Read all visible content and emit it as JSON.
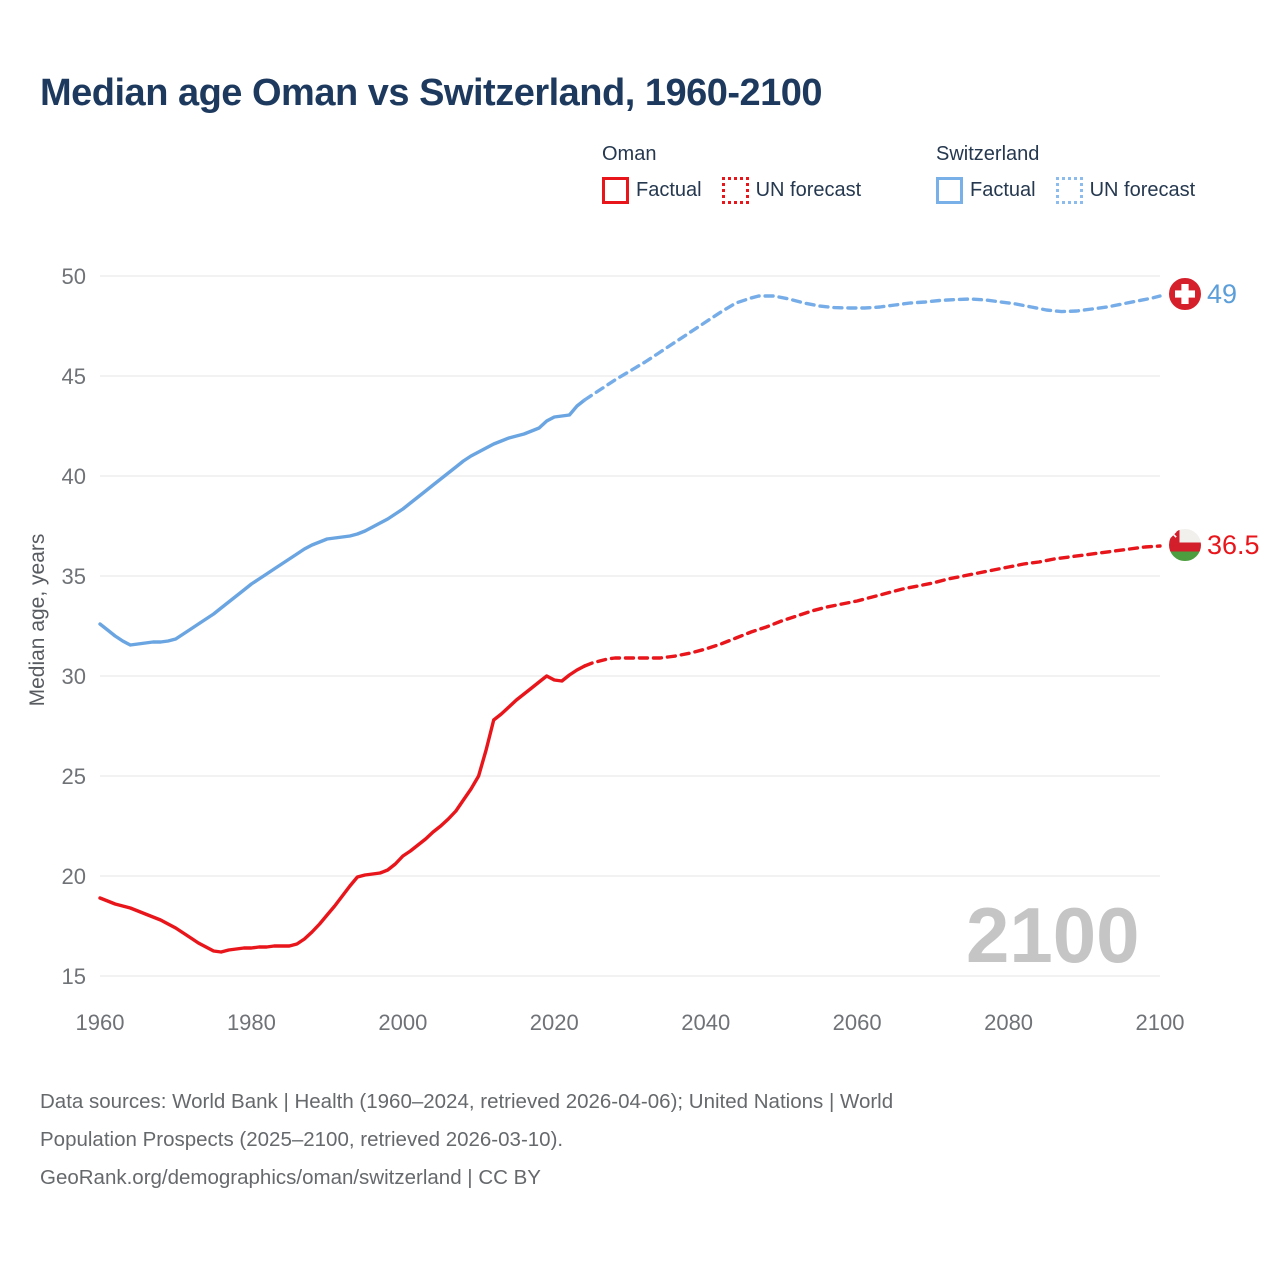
{
  "title": "Median age Oman vs Switzerland, 1960-2100",
  "watermark": "2100",
  "legend": {
    "groups": [
      {
        "label": "Oman",
        "items": [
          {
            "label": "Factual",
            "style": "solid",
            "color": "#e8151b"
          },
          {
            "label": "UN forecast",
            "style": "dotted",
            "color": "#e8151b"
          }
        ]
      },
      {
        "label": "Switzerland",
        "items": [
          {
            "label": "Factual",
            "style": "solid",
            "color": "#79b0e8"
          },
          {
            "label": "UN forecast",
            "style": "dotted",
            "color": "#8cbbee"
          }
        ]
      }
    ]
  },
  "end_labels": {
    "switzerland": {
      "value": "49",
      "color": "#5b9ed9"
    },
    "oman": {
      "value": "36.5",
      "color": "#e8151b"
    }
  },
  "footer": {
    "line1": "Data sources: World Bank | Health (1960–2024, retrieved 2026-04-06); United Nations | World",
    "line2": "Population Prospects (2025–2100, retrieved 2026-03-10).",
    "line3": "GeoRank.org/demographics/oman/switzerland | CC BY"
  },
  "chart_data": {
    "type": "line",
    "title": "Median age Oman vs Switzerland, 1960-2100",
    "xlabel": "",
    "ylabel": "Median age, years",
    "xlim": [
      1960,
      2100
    ],
    "ylim": [
      15,
      50
    ],
    "x_ticks": [
      1960,
      1980,
      2000,
      2020,
      2040,
      2060,
      2080,
      2100
    ],
    "y_ticks": [
      15,
      20,
      25,
      30,
      35,
      40,
      45,
      50
    ],
    "grid_on": true,
    "grid_color": "#ededee",
    "tick_color": "#6f7276",
    "axis_title_color": "#585c61",
    "legend_position": "top-right",
    "series": [
      {
        "id": "switzerland-factual",
        "name": "Switzerland Factual",
        "color": "#6aa5e2",
        "dashed": false,
        "points": [
          [
            1960,
            32.6
          ],
          [
            1961,
            32.3
          ],
          [
            1962,
            32.0
          ],
          [
            1963,
            31.75
          ],
          [
            1964,
            31.55
          ],
          [
            1965,
            31.6
          ],
          [
            1966,
            31.65
          ],
          [
            1967,
            31.7
          ],
          [
            1968,
            31.7
          ],
          [
            1969,
            31.75
          ],
          [
            1970,
            31.85
          ],
          [
            1971,
            32.1
          ],
          [
            1972,
            32.35
          ],
          [
            1973,
            32.6
          ],
          [
            1974,
            32.85
          ],
          [
            1975,
            33.1
          ],
          [
            1976,
            33.4
          ],
          [
            1977,
            33.7
          ],
          [
            1978,
            34.0
          ],
          [
            1979,
            34.3
          ],
          [
            1980,
            34.6
          ],
          [
            1981,
            34.85
          ],
          [
            1982,
            35.1
          ],
          [
            1983,
            35.35
          ],
          [
            1984,
            35.6
          ],
          [
            1985,
            35.85
          ],
          [
            1986,
            36.1
          ],
          [
            1987,
            36.35
          ],
          [
            1988,
            36.55
          ],
          [
            1989,
            36.7
          ],
          [
            1990,
            36.85
          ],
          [
            1991,
            36.9
          ],
          [
            1992,
            36.95
          ],
          [
            1993,
            37.0
          ],
          [
            1994,
            37.1
          ],
          [
            1995,
            37.25
          ],
          [
            1996,
            37.45
          ],
          [
            1997,
            37.65
          ],
          [
            1998,
            37.85
          ],
          [
            1999,
            38.1
          ],
          [
            2000,
            38.35
          ],
          [
            2001,
            38.65
          ],
          [
            2002,
            38.95
          ],
          [
            2003,
            39.25
          ],
          [
            2004,
            39.55
          ],
          [
            2005,
            39.85
          ],
          [
            2006,
            40.15
          ],
          [
            2007,
            40.45
          ],
          [
            2008,
            40.75
          ],
          [
            2009,
            41.0
          ],
          [
            2010,
            41.2
          ],
          [
            2011,
            41.4
          ],
          [
            2012,
            41.6
          ],
          [
            2013,
            41.75
          ],
          [
            2014,
            41.9
          ],
          [
            2015,
            42.0
          ],
          [
            2016,
            42.1
          ],
          [
            2017,
            42.25
          ],
          [
            2018,
            42.4
          ],
          [
            2019,
            42.75
          ],
          [
            2020,
            42.95
          ],
          [
            2021,
            43.0
          ],
          [
            2022,
            43.05
          ],
          [
            2023,
            43.5
          ],
          [
            2024,
            43.8
          ]
        ]
      },
      {
        "id": "switzerland-forecast",
        "name": "Switzerland UN forecast",
        "color": "#76ade8",
        "dashed": true,
        "points": [
          [
            2024,
            43.8
          ],
          [
            2025,
            44.05
          ],
          [
            2026,
            44.3
          ],
          [
            2028,
            44.8
          ],
          [
            2030,
            45.25
          ],
          [
            2032,
            45.7
          ],
          [
            2034,
            46.2
          ],
          [
            2036,
            46.7
          ],
          [
            2038,
            47.2
          ],
          [
            2040,
            47.7
          ],
          [
            2042,
            48.2
          ],
          [
            2044,
            48.65
          ],
          [
            2046,
            48.9
          ],
          [
            2047,
            49.0
          ],
          [
            2049,
            49.0
          ],
          [
            2051,
            48.85
          ],
          [
            2053,
            48.65
          ],
          [
            2055,
            48.5
          ],
          [
            2057,
            48.42
          ],
          [
            2059,
            48.4
          ],
          [
            2061,
            48.4
          ],
          [
            2063,
            48.45
          ],
          [
            2065,
            48.55
          ],
          [
            2067,
            48.65
          ],
          [
            2069,
            48.7
          ],
          [
            2071,
            48.78
          ],
          [
            2073,
            48.82
          ],
          [
            2075,
            48.85
          ],
          [
            2077,
            48.8
          ],
          [
            2079,
            48.7
          ],
          [
            2081,
            48.6
          ],
          [
            2083,
            48.45
          ],
          [
            2085,
            48.3
          ],
          [
            2087,
            48.22
          ],
          [
            2089,
            48.25
          ],
          [
            2091,
            48.35
          ],
          [
            2093,
            48.45
          ],
          [
            2095,
            48.6
          ],
          [
            2097,
            48.75
          ],
          [
            2099,
            48.9
          ],
          [
            2100,
            49.0
          ]
        ]
      },
      {
        "id": "oman-factual",
        "name": "Oman Factual",
        "color": "#e8151b",
        "dashed": false,
        "points": [
          [
            1960,
            18.9
          ],
          [
            1961,
            18.75
          ],
          [
            1962,
            18.6
          ],
          [
            1963,
            18.5
          ],
          [
            1964,
            18.4
          ],
          [
            1965,
            18.25
          ],
          [
            1966,
            18.1
          ],
          [
            1967,
            17.95
          ],
          [
            1968,
            17.8
          ],
          [
            1969,
            17.6
          ],
          [
            1970,
            17.4
          ],
          [
            1971,
            17.15
          ],
          [
            1972,
            16.9
          ],
          [
            1973,
            16.65
          ],
          [
            1974,
            16.45
          ],
          [
            1975,
            16.25
          ],
          [
            1976,
            16.2
          ],
          [
            1977,
            16.3
          ],
          [
            1978,
            16.35
          ],
          [
            1979,
            16.4
          ],
          [
            1980,
            16.4
          ],
          [
            1981,
            16.45
          ],
          [
            1982,
            16.45
          ],
          [
            1983,
            16.5
          ],
          [
            1984,
            16.5
          ],
          [
            1985,
            16.5
          ],
          [
            1986,
            16.6
          ],
          [
            1987,
            16.85
          ],
          [
            1988,
            17.2
          ],
          [
            1989,
            17.6
          ],
          [
            1990,
            18.05
          ],
          [
            1991,
            18.5
          ],
          [
            1992,
            19.0
          ],
          [
            1993,
            19.5
          ],
          [
            1994,
            19.95
          ],
          [
            1995,
            20.05
          ],
          [
            1996,
            20.1
          ],
          [
            1997,
            20.15
          ],
          [
            1998,
            20.3
          ],
          [
            1999,
            20.6
          ],
          [
            2000,
            21.0
          ],
          [
            2001,
            21.25
          ],
          [
            2002,
            21.55
          ],
          [
            2003,
            21.85
          ],
          [
            2004,
            22.2
          ],
          [
            2005,
            22.5
          ],
          [
            2006,
            22.85
          ],
          [
            2007,
            23.25
          ],
          [
            2008,
            23.8
          ],
          [
            2009,
            24.35
          ],
          [
            2010,
            25.0
          ],
          [
            2011,
            26.3
          ],
          [
            2012,
            27.8
          ],
          [
            2013,
            28.1
          ],
          [
            2014,
            28.45
          ],
          [
            2015,
            28.8
          ],
          [
            2016,
            29.1
          ],
          [
            2017,
            29.4
          ],
          [
            2018,
            29.7
          ],
          [
            2019,
            30.0
          ],
          [
            2020,
            29.8
          ],
          [
            2021,
            29.75
          ],
          [
            2022,
            30.05
          ],
          [
            2023,
            30.3
          ],
          [
            2024,
            30.5
          ]
        ]
      },
      {
        "id": "oman-forecast",
        "name": "Oman UN forecast",
        "color": "#e8151b",
        "dashed": true,
        "points": [
          [
            2024,
            30.5
          ],
          [
            2025,
            30.65
          ],
          [
            2026,
            30.75
          ],
          [
            2027,
            30.85
          ],
          [
            2028,
            30.9
          ],
          [
            2030,
            30.9
          ],
          [
            2032,
            30.9
          ],
          [
            2034,
            30.9
          ],
          [
            2035,
            30.95
          ],
          [
            2036,
            31.0
          ],
          [
            2038,
            31.15
          ],
          [
            2040,
            31.35
          ],
          [
            2042,
            31.6
          ],
          [
            2044,
            31.9
          ],
          [
            2046,
            32.2
          ],
          [
            2048,
            32.45
          ],
          [
            2050,
            32.75
          ],
          [
            2052,
            33.0
          ],
          [
            2054,
            33.25
          ],
          [
            2056,
            33.45
          ],
          [
            2058,
            33.6
          ],
          [
            2060,
            33.75
          ],
          [
            2062,
            33.95
          ],
          [
            2064,
            34.15
          ],
          [
            2066,
            34.35
          ],
          [
            2068,
            34.5
          ],
          [
            2070,
            34.65
          ],
          [
            2072,
            34.85
          ],
          [
            2074,
            35.0
          ],
          [
            2076,
            35.15
          ],
          [
            2078,
            35.3
          ],
          [
            2080,
            35.45
          ],
          [
            2082,
            35.6
          ],
          [
            2084,
            35.7
          ],
          [
            2086,
            35.85
          ],
          [
            2088,
            35.95
          ],
          [
            2090,
            36.05
          ],
          [
            2092,
            36.15
          ],
          [
            2094,
            36.25
          ],
          [
            2096,
            36.35
          ],
          [
            2098,
            36.45
          ],
          [
            2100,
            36.5
          ]
        ]
      }
    ]
  }
}
